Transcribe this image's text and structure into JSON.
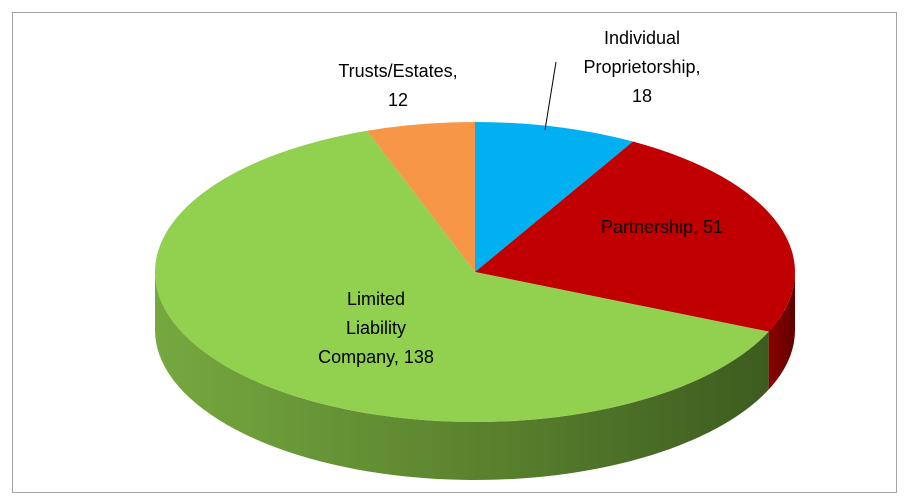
{
  "chart_data": {
    "type": "pie3d",
    "categories": [
      "Individual Proprietorship",
      "Partnership",
      "Limited Liability Company",
      "Trusts/Estates"
    ],
    "values": [
      18,
      51,
      138,
      12
    ],
    "value_labels": [
      "Individual Proprietorship, 18",
      "Partnership, 51",
      "Limited Liability Company, 138",
      "Trusts/Estates, 12"
    ],
    "colors": [
      "#00b0f0",
      "#c00000",
      "#92d050",
      "#f79646"
    ]
  }
}
